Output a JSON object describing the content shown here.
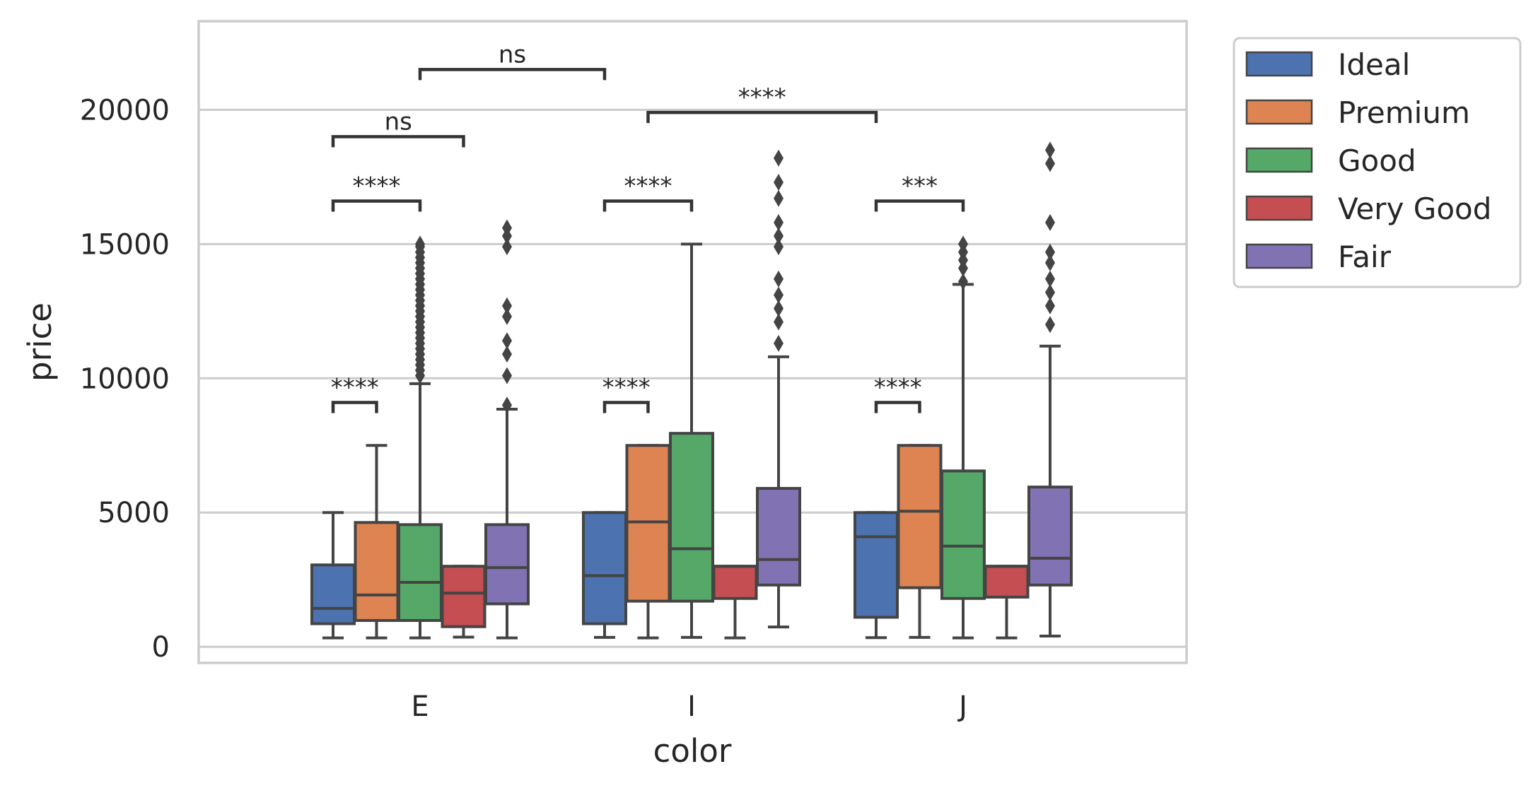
{
  "chart_data": {
    "type": "box",
    "xlabel": "color",
    "ylabel": "price",
    "ylim": [
      -600,
      23300
    ],
    "yticks": [
      0,
      5000,
      10000,
      15000,
      20000
    ],
    "grid": true,
    "legend_placement": "outside upper right",
    "categories": [
      "E",
      "I",
      "J"
    ],
    "series": [
      {
        "name": "Ideal",
        "color": "#4c72b0",
        "boxes": [
          {
            "lower_whisker": 330,
            "q1": 860,
            "median": 1430,
            "q3": 3050,
            "upper_whisker": 5000,
            "outliers": []
          },
          {
            "lower_whisker": 350,
            "q1": 860,
            "median": 2650,
            "q3": 5000,
            "upper_whisker": 5000,
            "outliers": []
          },
          {
            "lower_whisker": 340,
            "q1": 1100,
            "median": 4100,
            "q3": 5000,
            "upper_whisker": 5000,
            "outliers": []
          }
        ]
      },
      {
        "name": "Premium",
        "color": "#dd8452",
        "boxes": [
          {
            "lower_whisker": 330,
            "q1": 980,
            "median": 1930,
            "q3": 4630,
            "upper_whisker": 7500,
            "outliers": []
          },
          {
            "lower_whisker": 330,
            "q1": 1700,
            "median": 4650,
            "q3": 7500,
            "upper_whisker": 7500,
            "outliers": []
          },
          {
            "lower_whisker": 350,
            "q1": 2200,
            "median": 5050,
            "q3": 7500,
            "upper_whisker": 7500,
            "outliers": []
          }
        ]
      },
      {
        "name": "Good",
        "color": "#55a868",
        "boxes": [
          {
            "lower_whisker": 330,
            "q1": 980,
            "median": 2400,
            "q3": 4550,
            "upper_whisker": 9800,
            "outliers": [
              10100,
              10300,
              10500,
              10700,
              10900,
              11100,
              11300,
              11500,
              11700,
              11900,
              12100,
              12300,
              12500,
              12700,
              12900,
              13100,
              13300,
              13500,
              13700,
              13900,
              14100,
              14300,
              14500,
              14700,
              14900,
              15000
            ]
          },
          {
            "lower_whisker": 350,
            "q1": 1700,
            "median": 3650,
            "q3": 7950,
            "upper_whisker": 15000,
            "outliers": []
          },
          {
            "lower_whisker": 330,
            "q1": 1800,
            "median": 3750,
            "q3": 6550,
            "upper_whisker": 13500,
            "outliers": [
              13600,
              14100,
              14400,
              14700,
              15000
            ]
          }
        ]
      },
      {
        "name": "Very Good",
        "color": "#c44e52",
        "boxes": [
          {
            "lower_whisker": 360,
            "q1": 750,
            "median": 2000,
            "q3": 3000,
            "upper_whisker": 3000,
            "outliers": []
          },
          {
            "lower_whisker": 330,
            "q1": 1800,
            "median": 3000,
            "q3": 3000,
            "upper_whisker": 3000,
            "outliers": []
          },
          {
            "lower_whisker": 330,
            "q1": 1850,
            "median": 3000,
            "q3": 3000,
            "upper_whisker": 3000,
            "outliers": []
          }
        ]
      },
      {
        "name": "Fair",
        "color": "#8172b3",
        "boxes": [
          {
            "lower_whisker": 330,
            "q1": 1600,
            "median": 2950,
            "q3": 4550,
            "upper_whisker": 8850,
            "outliers": [
              9000,
              10100,
              10900,
              11400,
              12300,
              12700,
              14900,
              15300,
              15600
            ]
          },
          {
            "lower_whisker": 740,
            "q1": 2300,
            "median": 3250,
            "q3": 5900,
            "upper_whisker": 10800,
            "outliers": [
              11300,
              12100,
              12600,
              13100,
              13700,
              14900,
              15300,
              15800,
              16700,
              17300,
              18200
            ]
          },
          {
            "lower_whisker": 400,
            "q1": 2300,
            "median": 3300,
            "q3": 5950,
            "upper_whisker": 11200,
            "outliers": [
              12000,
              12700,
              13200,
              13700,
              14300,
              14700,
              15800,
              18000,
              18500
            ]
          }
        ]
      }
    ],
    "annotations": [
      {
        "text": "****",
        "from": [
          0,
          0
        ],
        "to": [
          0,
          1
        ],
        "y": 9100
      },
      {
        "text": "****",
        "from": [
          0,
          0
        ],
        "to": [
          0,
          2
        ],
        "y": 16600
      },
      {
        "text": "ns",
        "from": [
          0,
          0
        ],
        "to": [
          0,
          3
        ],
        "y": 19000
      },
      {
        "text": "ns",
        "from": [
          0,
          2
        ],
        "to": [
          1,
          0
        ],
        "y": 21500
      },
      {
        "text": "****",
        "from": [
          1,
          0
        ],
        "to": [
          1,
          1
        ],
        "y": 9100
      },
      {
        "text": "****",
        "from": [
          1,
          0
        ],
        "to": [
          1,
          2
        ],
        "y": 16600
      },
      {
        "text": "****",
        "from": [
          1,
          1
        ],
        "to": [
          2,
          0
        ],
        "y": 19900
      },
      {
        "text": "****",
        "from": [
          2,
          0
        ],
        "to": [
          2,
          1
        ],
        "y": 9100
      },
      {
        "text": "***",
        "from": [
          2,
          0
        ],
        "to": [
          2,
          2
        ],
        "y": 16600
      }
    ]
  }
}
